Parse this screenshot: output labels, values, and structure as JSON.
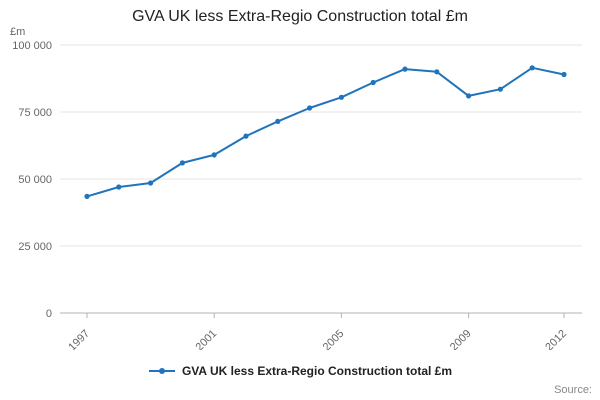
{
  "title": "GVA UK less Extra-Regio Construction total £m",
  "y_unit_label": "£m",
  "source_label": "Source:",
  "legend": {
    "label": "GVA UK less Extra-Regio Construction total £m"
  },
  "colors": {
    "line": "#2073bc",
    "grid": "#e6e6e6",
    "axis": "#b3b3b3",
    "tick_text": "#666666"
  },
  "chart_data": {
    "type": "line",
    "title": "GVA UK less Extra-Regio Construction total £m",
    "xlabel": "",
    "ylabel": "£m",
    "x": [
      1997,
      1998,
      1999,
      2000,
      2001,
      2002,
      2003,
      2004,
      2005,
      2006,
      2007,
      2008,
      2009,
      2010,
      2011,
      2012
    ],
    "series": [
      {
        "name": "GVA UK less Extra-Regio Construction total £m",
        "values": [
          43500,
          47000,
          48500,
          56000,
          59000,
          66000,
          71500,
          76500,
          80500,
          86000,
          91000,
          90000,
          81000,
          83500,
          91500,
          89000
        ]
      }
    ],
    "ylim": [
      0,
      100000
    ],
    "yticks": [
      0,
      25000,
      50000,
      75000,
      100000
    ],
    "ytick_labels": [
      "0",
      "25 000",
      "50 000",
      "75 000",
      "100 000"
    ],
    "xticks": [
      1997,
      2001,
      2005,
      2009,
      2012
    ],
    "xtick_labels": [
      "1997",
      "2001",
      "2005",
      "2009",
      "2012"
    ],
    "grid": true,
    "legend_position": "bottom"
  }
}
